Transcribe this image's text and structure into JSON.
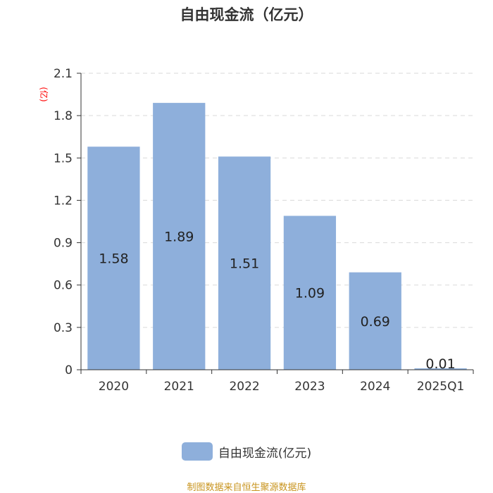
{
  "chart_data": {
    "type": "bar",
    "title": "自由现金流（亿元）",
    "ylabel": "(亿)",
    "categories": [
      "2020",
      "2021",
      "2022",
      "2023",
      "2024",
      "2025Q1"
    ],
    "series": [
      {
        "name": "自由现金流(亿元)",
        "values": [
          1.58,
          1.89,
          1.51,
          1.09,
          0.69,
          0.01
        ]
      }
    ],
    "data_labels": [
      "1.58",
      "1.89",
      "1.51",
      "1.09",
      "0.69",
      "0.01"
    ],
    "ylim": [
      0,
      2.1
    ],
    "yticks": [
      "0",
      "0.3",
      "0.6",
      "0.9",
      "1.2",
      "1.5",
      "1.8",
      "2.1"
    ],
    "grid": true,
    "legend_position": "bottom-center"
  },
  "colors": {
    "bar": "#8eafdb",
    "ylabel": "#ff0000",
    "source": "#c8941e"
  },
  "source_note": "制图数据来自恒生聚源数据库"
}
